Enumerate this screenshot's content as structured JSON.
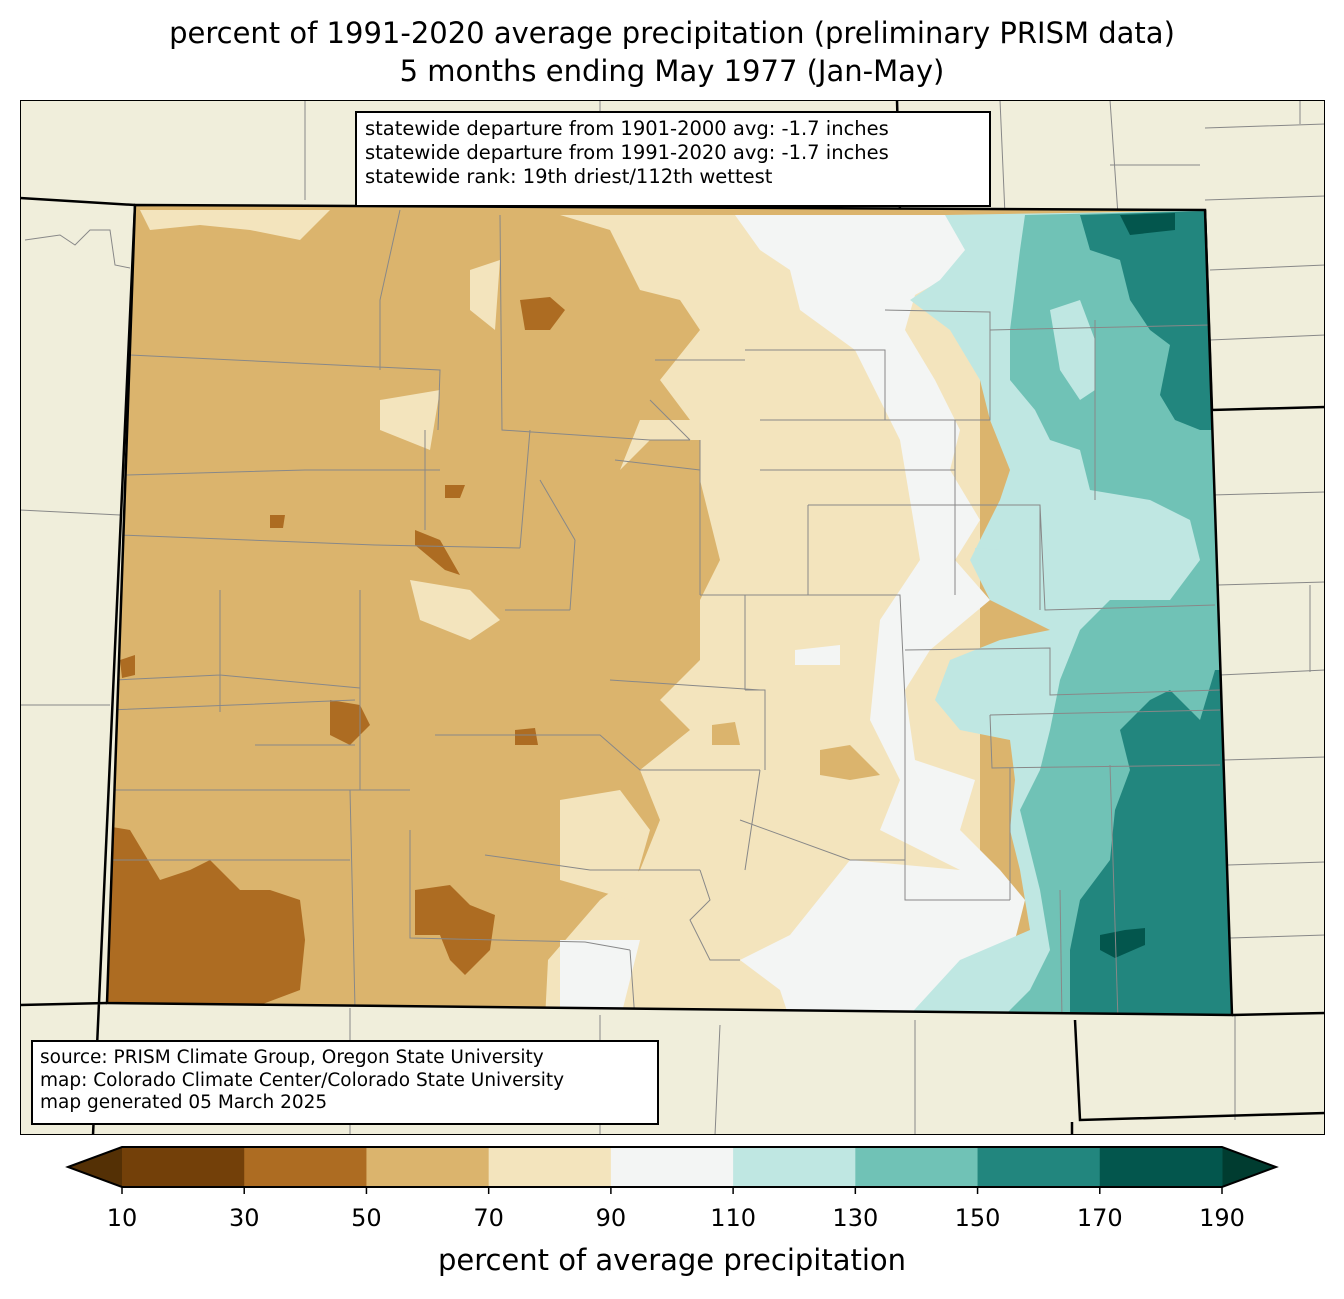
{
  "title": {
    "line1": "percent of 1991-2020 average precipitation (preliminary PRISM data)",
    "line2": "5 months ending May 1977 (Jan-May)"
  },
  "stats": {
    "line1": "statewide departure from 1901-2000 avg: -1.7 inches",
    "line2": "statewide departure from 1991-2020 avg: -1.7 inches",
    "line3": "statewide rank: 19th driest/112th wettest"
  },
  "source": {
    "line1": "source: PRISM Climate Group, Oregon State University",
    "line2": "map: Colorado Climate Center/Colorado State University",
    "line3": "map generated 05 March 2025"
  },
  "colorbar": {
    "label": "percent of average precipitation",
    "ticks": [
      "10",
      "30",
      "50",
      "70",
      "90",
      "110",
      "130",
      "150",
      "170",
      "190"
    ],
    "colors": [
      "#734009",
      "#ad6c22",
      "#dbb46d",
      "#f3e4bd",
      "#f3f5f4",
      "#bfe7e2",
      "#70c2b6",
      "#22867e",
      "#03564d"
    ],
    "under_color": "#543005",
    "over_color": "#003c30"
  }
}
